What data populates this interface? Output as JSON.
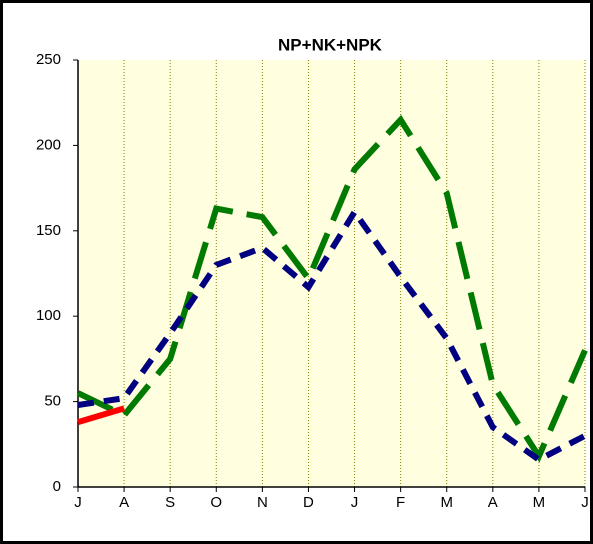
{
  "chart_data": {
    "type": "line",
    "title": "NP+NK+NPK",
    "categories": [
      "J",
      "A",
      "S",
      "O",
      "N",
      "D",
      "J",
      "F",
      "M",
      "A",
      "M",
      "J"
    ],
    "series": [
      {
        "color": "#007a00",
        "dash": "long",
        "values": [
          55,
          42,
          75,
          163,
          158,
          122,
          186,
          215,
          172,
          60,
          18,
          80
        ]
      },
      {
        "color": "#000080",
        "dash": "short",
        "values": [
          48,
          52,
          90,
          130,
          140,
          117,
          161,
          123,
          87,
          35,
          16,
          30
        ]
      },
      {
        "color": "#ff0000",
        "dash": "solid",
        "values": [
          38,
          46,
          null,
          null,
          null,
          null,
          null,
          null,
          null,
          null,
          null,
          null
        ]
      }
    ],
    "ylim": [
      0,
      250
    ],
    "yticks": [
      0,
      50,
      100,
      150,
      200,
      250
    ],
    "grid": true,
    "background": "#ffffe0"
  }
}
